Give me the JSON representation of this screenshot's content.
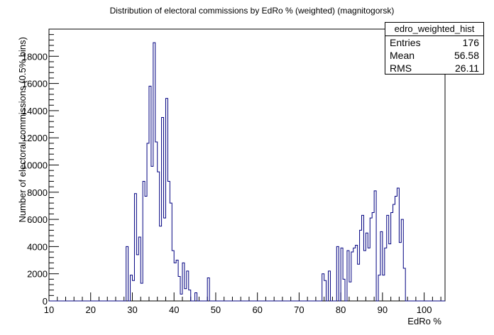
{
  "chart_data": {
    "type": "histogram",
    "title": "Distribution of electoral commissions by EdRo % (weighted) (magnitogorsk)",
    "xlabel": "EdRo %",
    "ylabel": "Number of electoral commissions (0.5% bins)",
    "xlim": [
      10,
      105
    ],
    "ylim": [
      0,
      20000
    ],
    "x_ticks": [
      10,
      20,
      30,
      40,
      50,
      60,
      70,
      80,
      90,
      100
    ],
    "y_ticks": [
      0,
      2000,
      4000,
      6000,
      8000,
      10000,
      12000,
      14000,
      16000,
      18000
    ],
    "bin_width": 0.5,
    "bin_start": 10,
    "bins": [
      {
        "x": 28.5,
        "y": 4000
      },
      {
        "x": 29.0,
        "y": 0
      },
      {
        "x": 29.5,
        "y": 1900
      },
      {
        "x": 30.0,
        "y": 1500
      },
      {
        "x": 30.5,
        "y": 7900
      },
      {
        "x": 31.0,
        "y": 3400
      },
      {
        "x": 31.5,
        "y": 4700
      },
      {
        "x": 32.0,
        "y": 1300
      },
      {
        "x": 32.5,
        "y": 8800
      },
      {
        "x": 33.0,
        "y": 7700
      },
      {
        "x": 33.5,
        "y": 11600
      },
      {
        "x": 34.0,
        "y": 15800
      },
      {
        "x": 34.5,
        "y": 9900
      },
      {
        "x": 35.0,
        "y": 19000
      },
      {
        "x": 35.5,
        "y": 11700
      },
      {
        "x": 36.0,
        "y": 9500
      },
      {
        "x": 36.5,
        "y": 5500
      },
      {
        "x": 37.0,
        "y": 13500
      },
      {
        "x": 37.5,
        "y": 6100
      },
      {
        "x": 38.0,
        "y": 14900
      },
      {
        "x": 38.5,
        "y": 8800
      },
      {
        "x": 39.0,
        "y": 7200
      },
      {
        "x": 39.5,
        "y": 3700
      },
      {
        "x": 40.0,
        "y": 2800
      },
      {
        "x": 40.5,
        "y": 3000
      },
      {
        "x": 41.0,
        "y": 1800
      },
      {
        "x": 41.5,
        "y": 500
      },
      {
        "x": 42.0,
        "y": 2800
      },
      {
        "x": 42.5,
        "y": 900
      },
      {
        "x": 43.0,
        "y": 2200
      },
      {
        "x": 43.5,
        "y": 800
      },
      {
        "x": 44.0,
        "y": 0
      },
      {
        "x": 44.5,
        "y": 0
      },
      {
        "x": 45.0,
        "y": 600
      },
      {
        "x": 45.5,
        "y": 0
      },
      {
        "x": 46.0,
        "y": 0
      },
      {
        "x": 46.5,
        "y": 0
      },
      {
        "x": 47.0,
        "y": 0
      },
      {
        "x": 47.5,
        "y": 0
      },
      {
        "x": 48.0,
        "y": 1700
      },
      {
        "x": 75.5,
        "y": 2000
      },
      {
        "x": 76.0,
        "y": 1500
      },
      {
        "x": 76.5,
        "y": 0
      },
      {
        "x": 77.0,
        "y": 2200
      },
      {
        "x": 77.5,
        "y": 0
      },
      {
        "x": 78.0,
        "y": 0
      },
      {
        "x": 78.5,
        "y": 0
      },
      {
        "x": 79.0,
        "y": 4000
      },
      {
        "x": 79.5,
        "y": 0
      },
      {
        "x": 80.0,
        "y": 3900
      },
      {
        "x": 80.5,
        "y": 1600
      },
      {
        "x": 81.0,
        "y": 0
      },
      {
        "x": 81.5,
        "y": 3700
      },
      {
        "x": 82.0,
        "y": 1400
      },
      {
        "x": 82.5,
        "y": 3600
      },
      {
        "x": 83.0,
        "y": 3900
      },
      {
        "x": 83.5,
        "y": 4100
      },
      {
        "x": 84.0,
        "y": 2700
      },
      {
        "x": 84.5,
        "y": 5200
      },
      {
        "x": 85.0,
        "y": 6300
      },
      {
        "x": 85.5,
        "y": 3700
      },
      {
        "x": 86.0,
        "y": 5000
      },
      {
        "x": 86.5,
        "y": 3900
      },
      {
        "x": 87.0,
        "y": 6100
      },
      {
        "x": 87.5,
        "y": 6500
      },
      {
        "x": 88.0,
        "y": 8100
      },
      {
        "x": 88.5,
        "y": 0
      },
      {
        "x": 89.0,
        "y": 1900
      },
      {
        "x": 89.5,
        "y": 5100
      },
      {
        "x": 90.0,
        "y": 1900
      },
      {
        "x": 90.5,
        "y": 3900
      },
      {
        "x": 91.0,
        "y": 6300
      },
      {
        "x": 91.5,
        "y": 4200
      },
      {
        "x": 92.0,
        "y": 6500
      },
      {
        "x": 92.5,
        "y": 7100
      },
      {
        "x": 93.0,
        "y": 7700
      },
      {
        "x": 93.5,
        "y": 8300
      },
      {
        "x": 94.0,
        "y": 4300
      },
      {
        "x": 94.5,
        "y": 6000
      },
      {
        "x": 95.0,
        "y": 2400
      }
    ],
    "legend": "top-right",
    "stats": {
      "title": "edro_weighted_hist",
      "rows": [
        {
          "label": "Entries",
          "value": "176"
        },
        {
          "label": "Mean",
          "value": "56.58"
        },
        {
          "label": "RMS",
          "value": "26.11"
        }
      ]
    },
    "colors": {
      "line": "#000080",
      "axis": "#000000",
      "background": "#ffffff"
    }
  }
}
